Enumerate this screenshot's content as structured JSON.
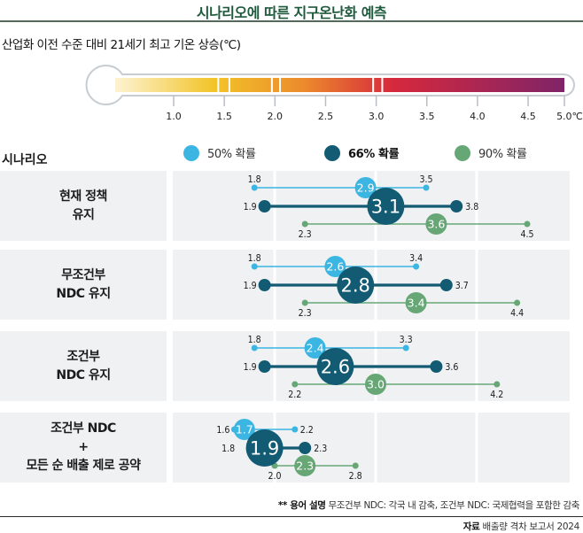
{
  "title": "시나리오에 따른 지구온난화 예측",
  "subtitle": "산업화 이전 수준 대비 21세기 최고 기온 상승(℃)",
  "thermometer": {
    "ticks": [
      "1.0",
      "1.5",
      "2.0",
      "2.5",
      "3.0",
      "3.5",
      "4.0",
      "4.5",
      "5.0℃"
    ],
    "tick_values": [
      1.0,
      1.5,
      2.0,
      2.5,
      3.0,
      3.5,
      4.0,
      4.5,
      5.0
    ],
    "marked_bands": [
      [
        1.44,
        1.55
      ],
      [
        1.97,
        2.05
      ],
      [
        2.97,
        3.06
      ]
    ],
    "gradient_colors": [
      "#fdf3d2",
      "#f2c428",
      "#ec8a2c",
      "#d6283d",
      "#7f2468"
    ]
  },
  "scenario_header": "시나리오",
  "legend": [
    {
      "label": "50% 확률",
      "color": "#3bb5e2"
    },
    {
      "label": "66% 확률",
      "color": "#135a73"
    },
    {
      "label": "90% 확률",
      "color": "#67a776"
    }
  ],
  "chart_data": {
    "type": "range-dot",
    "title": "시나리오에 따른 지구온난화 예측",
    "xlabel": "산업화 이전 수준 대비 21세기 최고 기온 상승(℃)",
    "xlim": [
      1.0,
      5.0
    ],
    "gridlines": [
      2.0,
      3.0,
      4.0
    ],
    "series_names": [
      "50% 확률",
      "66% 확률",
      "90% 확률"
    ],
    "scenarios": [
      {
        "label": "현재 정책\n유지",
        "ranges": [
          {
            "series": "50% 확률",
            "min": 1.8,
            "median": 2.9,
            "max": 3.5
          },
          {
            "series": "66% 확률",
            "min": 1.9,
            "median": 3.1,
            "max": 3.8
          },
          {
            "series": "90% 확률",
            "min": 2.3,
            "median": 3.6,
            "max": 4.5
          }
        ]
      },
      {
        "label": "무조건부\nNDC 유지",
        "ranges": [
          {
            "series": "50% 확률",
            "min": 1.8,
            "median": 2.6,
            "max": 3.4
          },
          {
            "series": "66% 확률",
            "min": 1.9,
            "median": 2.8,
            "max": 3.7
          },
          {
            "series": "90% 확률",
            "min": 2.3,
            "median": 3.4,
            "max": 4.4
          }
        ]
      },
      {
        "label": "조건부\nNDC 유지",
        "ranges": [
          {
            "series": "50% 확률",
            "min": 1.8,
            "median": 2.4,
            "max": 3.3
          },
          {
            "series": "66% 확률",
            "min": 1.9,
            "median": 2.6,
            "max": 3.6
          },
          {
            "series": "90% 확률",
            "min": 2.2,
            "median": 3.0,
            "max": 4.2
          }
        ]
      },
      {
        "label": "조건부 NDC\n+\n모든 순 배출 제로 공약",
        "ranges": [
          {
            "series": "50% 확률",
            "min": 1.6,
            "median": 1.7,
            "max": 2.2
          },
          {
            "series": "66% 확률",
            "min": 1.8,
            "median": 1.9,
            "max": 2.3
          },
          {
            "series": "90% 확률",
            "min": 2.0,
            "median": 2.3,
            "max": 2.8
          }
        ]
      }
    ]
  },
  "footnote": {
    "prefix": "** 용어 설명",
    "text": " 무조건부 NDC: 각국 내 감축, 조건부 NDC: 국제협력을 포함한 감축"
  },
  "source": {
    "prefix": "자료",
    "text": " 배출량 격차 보고서 2024"
  }
}
